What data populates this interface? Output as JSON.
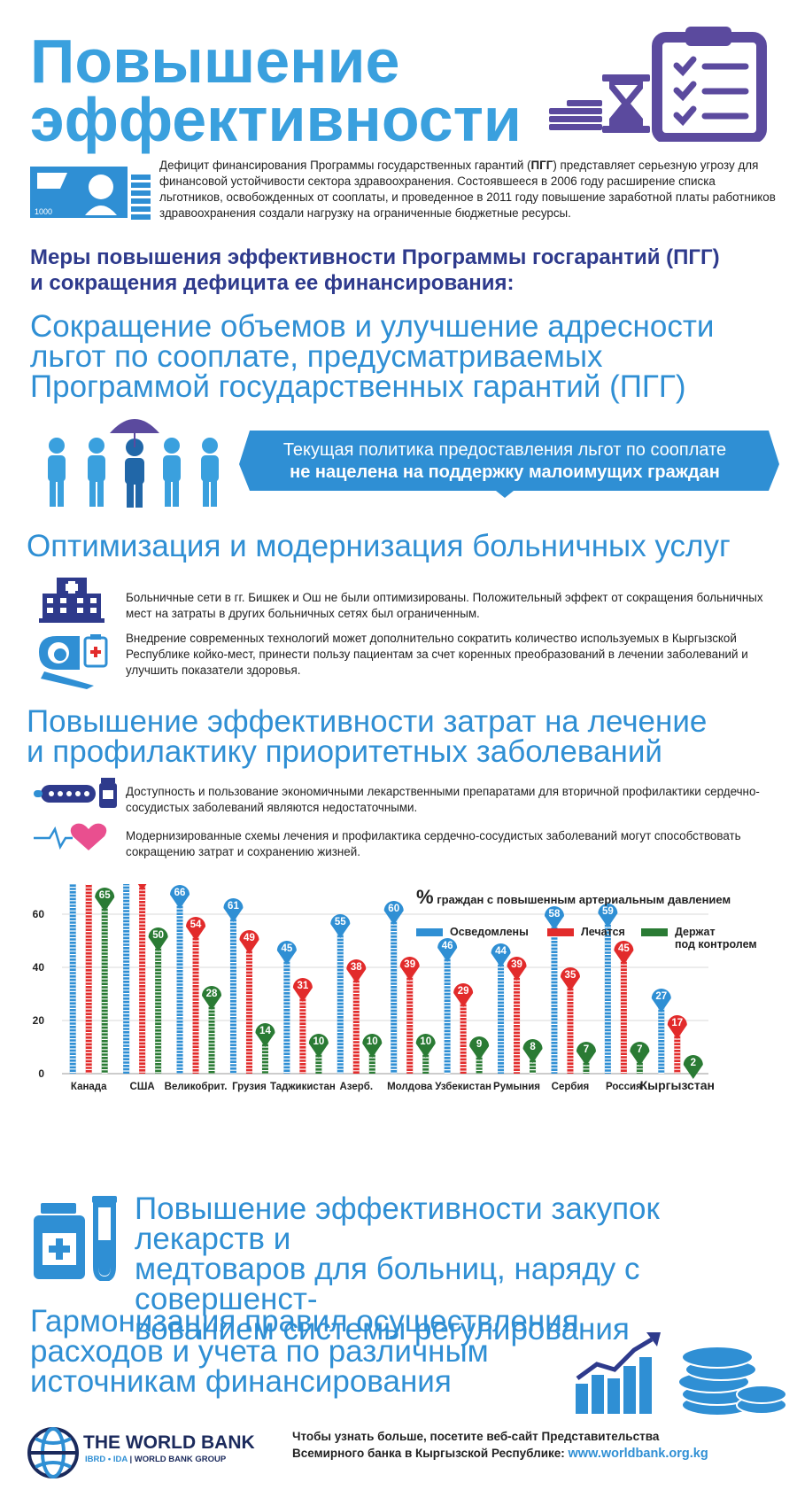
{
  "title": {
    "line1": "Повышение",
    "line2": "эффективности"
  },
  "intro": {
    "p1": "Дефицит финансирования Программы государственных гарантий (",
    "p1_bold": "ПГГ",
    "p2": ") представляет серьезную угрозу для финансовой устойчивости сектора здравоохранения. Состоявшееся в 2006 году расширение списка льготников, освобожденных от сооплаты, и проведенное в 2011 году повышение заработной платы работников здравоохранения создали нагрузку на ограниченные бюджетные ресурсы.",
    "banknote_value": "1000"
  },
  "measures_heading": {
    "line1": "Меры повышения эффективности Программы госгарантий (ПГГ)",
    "line2": "и сокращения дефицита ее финансирования:"
  },
  "section1": {
    "line1": "Сокращение объемов и улучшение адресности",
    "line2": "льгот по сооплате, предусматриваемых",
    "line3": "Программой государственных гарантий (ПГГ)",
    "banner_line1": "Текущая политика предоставления льгот по сооплате",
    "banner_line2": "не нацелена на поддержку малоимущих граждан"
  },
  "section2": {
    "heading": "Оптимизация и модернизация больничных услуг",
    "item1": "Больничные сети в гг. Бишкек и Ош не были оптимизированы. Положительный эффект от сокращения больничных мест на затраты в других больничных сетях был ограниченным.",
    "item2": "Внедрение современных технологий может дополнительно сократить количество используемых в Кыргызской Республике койко-мест, принести пользу пациентам за счет коренных преобразований в лечении заболеваний и улучшить показатели здоровья."
  },
  "section3": {
    "line1": "Повышение эффективности затрат на лечение",
    "line2": "и профилактику приоритетных заболеваний",
    "item1": "Доступность и пользование экономичными лекарственными препаратами  для вторичной профилактики сердечно-сосудистых заболеваний являются недостаточными.",
    "item2": "Модернизированные схемы лечения и профилактика сердечно-сосудистых заболеваний могут способствовать сокращению затрат и сохранению жизней."
  },
  "chart_data": {
    "type": "bar",
    "title_pct": "%",
    "title": "граждан с повышенным артериальным давлением",
    "categories": [
      "Канада",
      "США",
      "Великобрит.",
      "Грузия",
      "Таджикистан",
      "Азерб.",
      "Молдова",
      "Узбекистан",
      "Румыния",
      "Сербия",
      "Россия",
      "Кыргызстан"
    ],
    "series": [
      {
        "name": "Осведомлены",
        "color": "#2f8fd4",
        "values": [
          83,
          81,
          66,
          61,
          45,
          55,
          60,
          46,
          44,
          58,
          59,
          27
        ]
      },
      {
        "name": "Лечатся",
        "color": "#e22b2b",
        "values": [
          79,
          73,
          54,
          49,
          31,
          38,
          39,
          29,
          39,
          35,
          45,
          17
        ]
      },
      {
        "name": "Держат\nпод контролем",
        "color": "#2a7b34",
        "values": [
          65,
          50,
          28,
          14,
          10,
          10,
          10,
          9,
          8,
          7,
          7,
          2
        ]
      }
    ],
    "ylim": [
      0,
      86
    ],
    "yticks": [
      0,
      20,
      40,
      60,
      80
    ],
    "grid": true,
    "legend": "top-right",
    "legend_labels": {
      "s1": "Осведомлены",
      "s2": "Лечатся",
      "s3a": "Держат",
      "s3b": "под контролем"
    }
  },
  "section4": {
    "line1": "Повышение эффективности закупок лекарств и",
    "line2": "медтоваров для больниц, наряду с совершенст-",
    "line3": "вованием системы регулирования"
  },
  "section5": {
    "line1": "Гармонизация правил осуществления",
    "line2": "расходов и учета по различным",
    "line3": "источникам финансирования"
  },
  "footer": {
    "org": "THE WORLD BANK",
    "sub_a": "IBRD • IDA",
    "sub_sep": " | ",
    "sub_b": "WORLD BANK GROUP",
    "text1": "Чтобы узнать больше, посетите веб-сайт Представительства",
    "text2": "Всемирного банка в Кыргызской Республике:",
    "link": "www.worldbank.org.kg"
  },
  "colors": {
    "blue": "#2f8fd4",
    "title_blue": "#3aa0de",
    "purple": "#5b4a9e",
    "navy": "#2e3a8c",
    "red": "#e22b2b",
    "green": "#2a7b34"
  }
}
